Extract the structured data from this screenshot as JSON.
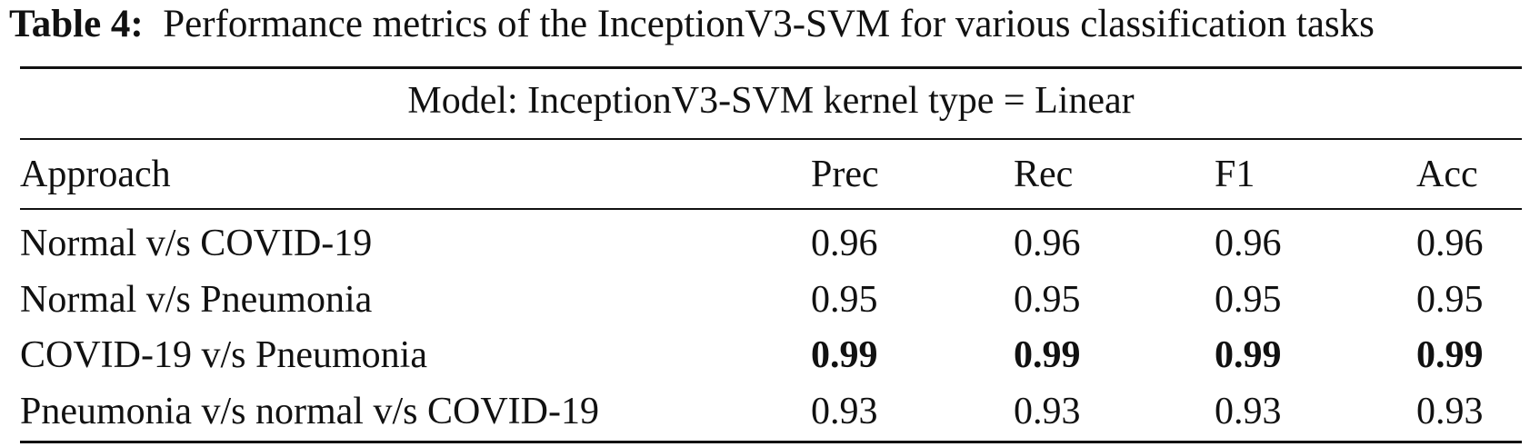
{
  "caption": {
    "label": "Table 4:",
    "text": "Performance metrics of the InceptionV3-SVM for various classification tasks"
  },
  "table": {
    "model_line": "Model: InceptionV3-SVM kernel type = Linear",
    "headers": {
      "approach": "Approach",
      "prec": "Prec",
      "rec": "Rec",
      "f1": "F1",
      "acc": "Acc"
    },
    "rows": [
      {
        "approach": "Normal v/s COVID-19",
        "prec": "0.96",
        "rec": "0.96",
        "f1": "0.96",
        "acc": "0.96",
        "bold": false
      },
      {
        "approach": "Normal v/s Pneumonia",
        "prec": "0.95",
        "rec": "0.95",
        "f1": "0.95",
        "acc": "0.95",
        "bold": false
      },
      {
        "approach": "COVID-19 v/s Pneumonia",
        "prec": "0.99",
        "rec": "0.99",
        "f1": "0.99",
        "acc": "0.99",
        "bold": true
      },
      {
        "approach": "Pneumonia v/s normal v/s COVID-19",
        "prec": "0.93",
        "rec": "0.93",
        "f1": "0.93",
        "acc": "0.93",
        "bold": false
      }
    ]
  }
}
